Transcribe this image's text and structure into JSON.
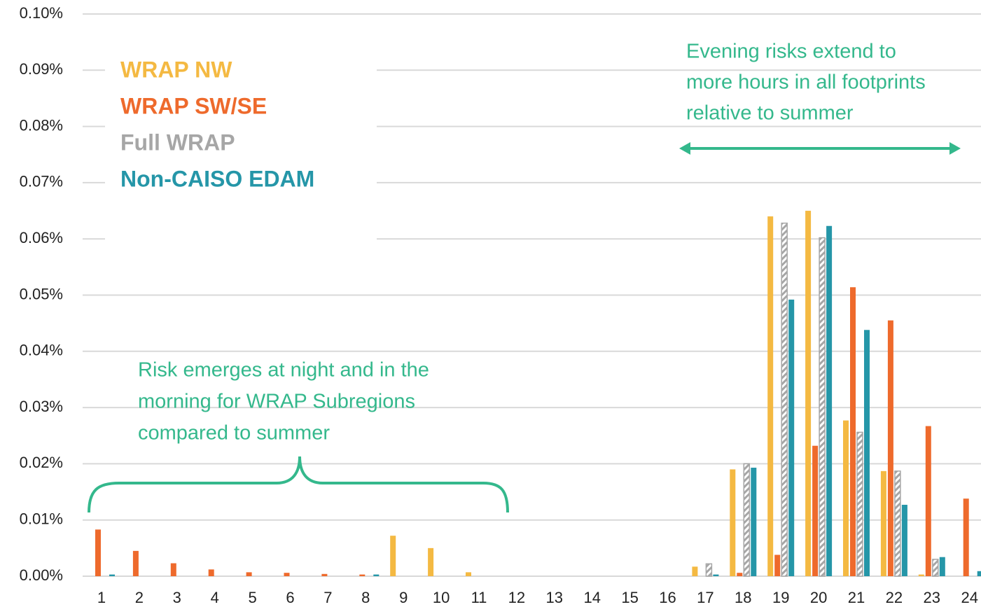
{
  "chart_data": {
    "type": "bar",
    "categories": [
      1,
      2,
      3,
      4,
      5,
      6,
      7,
      8,
      9,
      10,
      11,
      12,
      13,
      14,
      15,
      16,
      17,
      18,
      19,
      20,
      21,
      22,
      23,
      24
    ],
    "series": [
      {
        "name": "WRAP NW",
        "color": "#f4b942",
        "values": [
          0,
          0,
          0,
          0,
          0,
          0,
          0,
          0,
          0.0072,
          0.005,
          0.0007,
          0,
          0,
          0,
          0,
          0,
          0.0017,
          0.019,
          0.064,
          0.065,
          0.0277,
          0.0187,
          0.0003,
          0
        ]
      },
      {
        "name": "WRAP SW/SE",
        "color": "#ee6a2c",
        "values": [
          0.0083,
          0.0045,
          0.0023,
          0.0012,
          0.0007,
          0.0006,
          0.0004,
          0.0003,
          0,
          0,
          0,
          0,
          0,
          0,
          0,
          0,
          0,
          0.0006,
          0.0038,
          0.0232,
          0.0514,
          0.0455,
          0.0267,
          0.0138
        ]
      },
      {
        "name": "Full WRAP",
        "color": "#a6a6a6",
        "hatch": true,
        "values": [
          0,
          0,
          0,
          0,
          0,
          0,
          0,
          0,
          0,
          0,
          0,
          0,
          0,
          0,
          0,
          0,
          0.0022,
          0.02,
          0.0628,
          0.0602,
          0.0256,
          0.0187,
          0.003,
          0
        ]
      },
      {
        "name": "Non-CAISO EDAM",
        "color": "#2596a8",
        "values": [
          0.0003,
          0,
          0,
          0,
          0,
          0,
          0,
          0.0003,
          0,
          0,
          0,
          0,
          0,
          0,
          0,
          0,
          0.0003,
          0.0193,
          0.0492,
          0.0623,
          0.0438,
          0.0127,
          0.0034,
          0.0009
        ]
      }
    ],
    "ylim": [
      0,
      0.1
    ],
    "yticks": [
      {
        "value": 0,
        "label": "0.00%"
      },
      {
        "value": 0.01,
        "label": "0.01%"
      },
      {
        "value": 0.02,
        "label": "0.02%"
      },
      {
        "value": 0.03,
        "label": "0.03%"
      },
      {
        "value": 0.04,
        "label": "0.04%"
      },
      {
        "value": 0.05,
        "label": "0.05%"
      },
      {
        "value": 0.06,
        "label": "0.06%"
      },
      {
        "value": 0.07,
        "label": "0.07%"
      },
      {
        "value": 0.08,
        "label": "0.08%"
      },
      {
        "value": 0.09,
        "label": "0.09%"
      },
      {
        "value": 0.1,
        "label": "0.10%"
      }
    ],
    "grid": true,
    "annotations": [
      {
        "lines": [
          "Risk emerges at night and in the",
          "morning for WRAP Subregions",
          "compared to summer"
        ],
        "color": "#34b88c"
      },
      {
        "lines": [
          "Evening risks extend to",
          "more hours in all footprints",
          "relative to summer"
        ],
        "color": "#34b88c"
      }
    ]
  }
}
